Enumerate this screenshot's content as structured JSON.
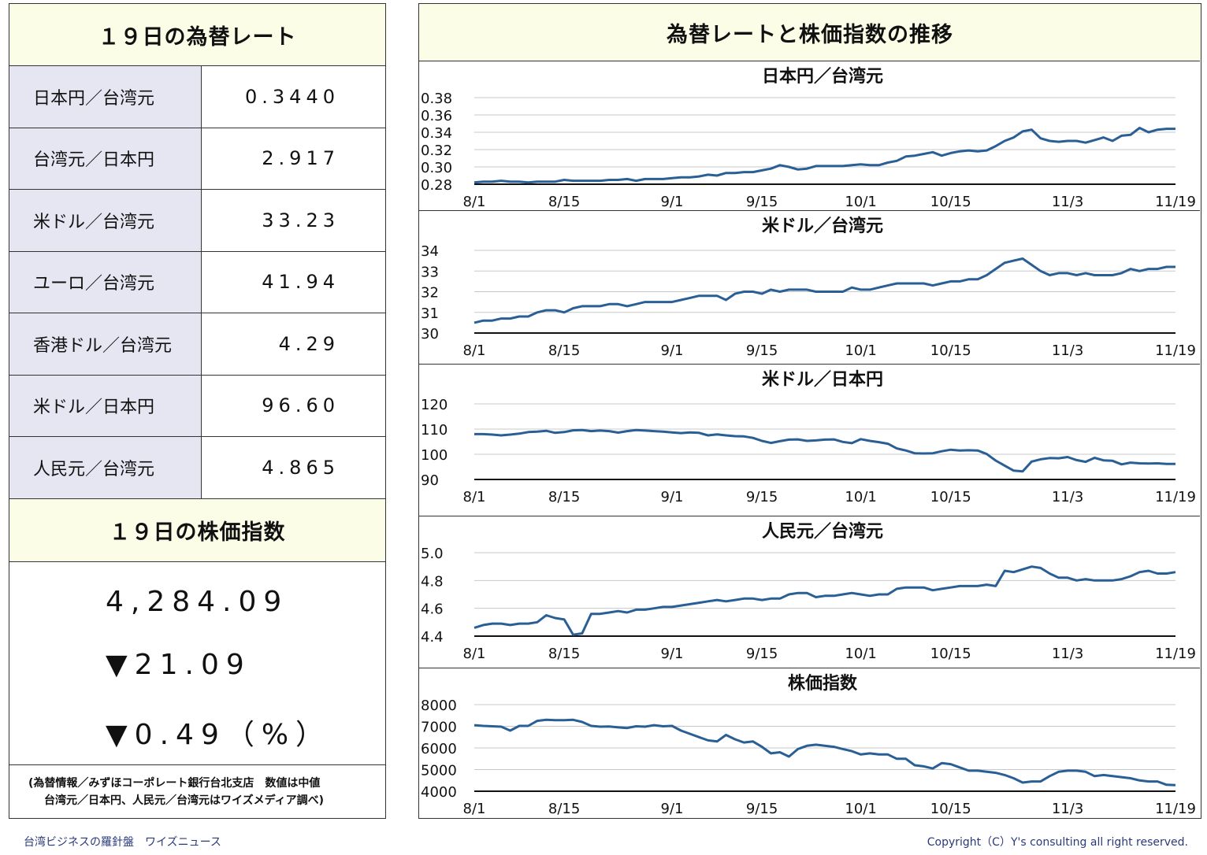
{
  "left": {
    "rates_title": "１９日の為替レート",
    "rates": [
      {
        "name": "日本円／台湾元",
        "value": "0.3440"
      },
      {
        "name": "台湾元／日本円",
        "value": "2.917"
      },
      {
        "name": "米ドル／台湾元",
        "value": "33.23"
      },
      {
        "name": "ユーロ／台湾元",
        "value": "41.94"
      },
      {
        "name": "香港ドル／台湾元",
        "value": "4.29"
      },
      {
        "name": "米ドル／日本円",
        "value": "96.60"
      },
      {
        "name": "人民元／台湾元",
        "value": "4.865"
      }
    ],
    "stock_title": "１９日の株価指数",
    "stock_index": "4,284.09",
    "stock_change": "▼21.09",
    "stock_change_pct": "▼0.49（%）",
    "source_line1": "(為替情報／みずほコーポレート銀行台北支店　数値は中値",
    "source_line2": "台湾元／日本円、人民元／台湾元はワイズメディア調べ)"
  },
  "right": {
    "title": "為替レートと株価指数の推移"
  },
  "footer": {
    "left": "台湾ビジネスの羅針盤　ワイズニュース",
    "right": "Copyright（C）Y's consulting all right reserved."
  },
  "colors": {
    "line": "#2a5f95",
    "header_bg": "#fcfde7",
    "label_bg": "#e5e6f2"
  },
  "chart_data": [
    {
      "type": "line",
      "title": "日本円／台湾元",
      "ylim": [
        0.28,
        0.38
      ],
      "yticks": [
        "0.38",
        "0.36",
        "0.34",
        "0.32",
        "0.30",
        "0.28"
      ],
      "x_ticks": [
        "8/1",
        "8/15",
        "9/1",
        "9/15",
        "10/1",
        "10/15",
        "11/3",
        "11/19"
      ],
      "x_tick_pos": [
        0,
        10,
        22,
        32,
        43,
        53,
        66,
        78
      ],
      "values": [
        0.282,
        0.283,
        0.283,
        0.284,
        0.283,
        0.283,
        0.282,
        0.283,
        0.283,
        0.283,
        0.285,
        0.284,
        0.284,
        0.284,
        0.284,
        0.285,
        0.285,
        0.286,
        0.284,
        0.286,
        0.286,
        0.286,
        0.287,
        0.288,
        0.288,
        0.289,
        0.291,
        0.29,
        0.293,
        0.293,
        0.294,
        0.294,
        0.296,
        0.298,
        0.302,
        0.3,
        0.297,
        0.298,
        0.301,
        0.301,
        0.301,
        0.301,
        0.302,
        0.303,
        0.302,
        0.302,
        0.305,
        0.307,
        0.312,
        0.313,
        0.315,
        0.317,
        0.313,
        0.316,
        0.318,
        0.319,
        0.318,
        0.319,
        0.324,
        0.33,
        0.334,
        0.341,
        0.343,
        0.333,
        0.33,
        0.329,
        0.33,
        0.33,
        0.328,
        0.331,
        0.334,
        0.33,
        0.336,
        0.337,
        0.345,
        0.34,
        0.343,
        0.344,
        0.344
      ]
    },
    {
      "type": "line",
      "title": "米ドル／台湾元",
      "ylim": [
        30,
        34
      ],
      "yticks": [
        "34",
        "33",
        "32",
        "31",
        "30"
      ],
      "x_ticks": [
        "8/1",
        "8/15",
        "9/1",
        "9/15",
        "10/1",
        "10/15",
        "11/3",
        "11/19"
      ],
      "x_tick_pos": [
        0,
        10,
        22,
        32,
        43,
        53,
        66,
        78
      ],
      "values": [
        30.5,
        30.6,
        30.6,
        30.7,
        30.7,
        30.8,
        30.8,
        31.0,
        31.1,
        31.1,
        31.0,
        31.2,
        31.3,
        31.3,
        31.3,
        31.4,
        31.4,
        31.3,
        31.4,
        31.5,
        31.5,
        31.5,
        31.5,
        31.6,
        31.7,
        31.8,
        31.8,
        31.8,
        31.6,
        31.9,
        32.0,
        32.0,
        31.9,
        32.1,
        32.0,
        32.1,
        32.1,
        32.1,
        32.0,
        32.0,
        32.0,
        32.0,
        32.2,
        32.1,
        32.1,
        32.2,
        32.3,
        32.4,
        32.4,
        32.4,
        32.4,
        32.3,
        32.4,
        32.5,
        32.5,
        32.6,
        32.6,
        32.8,
        33.1,
        33.4,
        33.5,
        33.6,
        33.3,
        33.0,
        32.8,
        32.9,
        32.9,
        32.8,
        32.9,
        32.8,
        32.8,
        32.8,
        32.9,
        33.1,
        33.0,
        33.1,
        33.1,
        33.2,
        33.2
      ]
    },
    {
      "type": "line",
      "title": "米ドル／日本円",
      "ylim": [
        90,
        120
      ],
      "yticks": [
        "120",
        "110",
        "100",
        "90"
      ],
      "x_ticks": [
        "8/1",
        "8/15",
        "9/1",
        "9/15",
        "10/1",
        "10/15",
        "11/3",
        "11/19"
      ],
      "x_tick_pos": [
        0,
        10,
        22,
        32,
        43,
        53,
        66,
        78
      ],
      "values": [
        108.0,
        108.0,
        107.8,
        107.5,
        107.8,
        108.2,
        108.8,
        109.0,
        109.3,
        108.5,
        108.8,
        109.5,
        109.6,
        109.2,
        109.4,
        109.2,
        108.6,
        109.2,
        109.6,
        109.4,
        109.2,
        109.0,
        108.7,
        108.4,
        108.7,
        108.5,
        107.5,
        107.9,
        107.5,
        107.2,
        107.1,
        106.5,
        105.3,
        104.5,
        105.2,
        105.8,
        105.9,
        105.3,
        105.5,
        105.8,
        105.9,
        104.9,
        104.4,
        106.0,
        105.3,
        104.8,
        104.2,
        102.3,
        101.5,
        100.4,
        100.3,
        100.4,
        101.2,
        101.8,
        101.5,
        101.6,
        101.5,
        100.1,
        97.5,
        95.5,
        93.5,
        93.2,
        97.1,
        98.0,
        98.5,
        98.4,
        98.9,
        97.7,
        97.0,
        98.6,
        97.6,
        97.4,
        96.0,
        96.7,
        96.4,
        96.3,
        96.4,
        96.2,
        96.2
      ]
    },
    {
      "type": "line",
      "title": "人民元／台湾元",
      "ylim": [
        4.4,
        5.0
      ],
      "yticks": [
        "5.0",
        "4.8",
        "4.6",
        "4.4"
      ],
      "x_ticks": [
        "8/1",
        "8/15",
        "9/1",
        "9/15",
        "10/1",
        "10/15",
        "11/3",
        "11/19"
      ],
      "x_tick_pos": [
        0,
        10,
        22,
        32,
        43,
        53,
        66,
        78
      ],
      "values": [
        4.46,
        4.48,
        4.49,
        4.49,
        4.48,
        4.49,
        4.49,
        4.5,
        4.55,
        4.53,
        4.52,
        4.41,
        4.42,
        4.56,
        4.56,
        4.57,
        4.58,
        4.57,
        4.59,
        4.59,
        4.6,
        4.61,
        4.61,
        4.62,
        4.63,
        4.64,
        4.65,
        4.66,
        4.65,
        4.66,
        4.67,
        4.67,
        4.66,
        4.67,
        4.67,
        4.7,
        4.71,
        4.71,
        4.68,
        4.69,
        4.69,
        4.7,
        4.71,
        4.7,
        4.69,
        4.7,
        4.7,
        4.74,
        4.75,
        4.75,
        4.75,
        4.73,
        4.74,
        4.75,
        4.76,
        4.76,
        4.76,
        4.77,
        4.76,
        4.87,
        4.86,
        4.88,
        4.9,
        4.89,
        4.85,
        4.82,
        4.82,
        4.8,
        4.81,
        4.8,
        4.8,
        4.8,
        4.81,
        4.83,
        4.86,
        4.87,
        4.85,
        4.85,
        4.86
      ]
    },
    {
      "type": "line",
      "title": "株価指数",
      "ylim": [
        4000,
        8000
      ],
      "yticks": [
        "8000",
        "7000",
        "6000",
        "5000",
        "4000"
      ],
      "x_ticks": [
        "8/1",
        "8/15",
        "9/1",
        "9/15",
        "10/1",
        "10/15",
        "11/3",
        "11/19"
      ],
      "x_tick_pos": [
        0,
        10,
        22,
        32,
        43,
        53,
        66,
        78
      ],
      "values": [
        7050,
        7020,
        7000,
        6980,
        6800,
        7020,
        7020,
        7250,
        7300,
        7280,
        7280,
        7300,
        7200,
        7020,
        6980,
        6990,
        6950,
        6920,
        7000,
        6980,
        7050,
        7000,
        7020,
        6800,
        6650,
        6500,
        6350,
        6300,
        6600,
        6400,
        6250,
        6300,
        6050,
        5750,
        5800,
        5600,
        5950,
        6100,
        6150,
        6100,
        6050,
        5950,
        5850,
        5700,
        5750,
        5700,
        5700,
        5500,
        5500,
        5200,
        5150,
        5050,
        5300,
        5250,
        5100,
        4950,
        4950,
        4900,
        4850,
        4750,
        4600,
        4400,
        4450,
        4450,
        4700,
        4900,
        4950,
        4950,
        4900,
        4700,
        4750,
        4700,
        4650,
        4600,
        4500,
        4450,
        4450,
        4300,
        4284
      ]
    }
  ]
}
